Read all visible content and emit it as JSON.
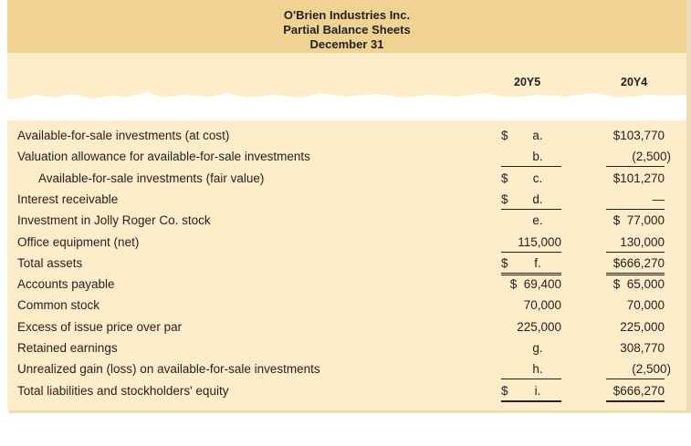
{
  "header": {
    "company": "O'Brien Industries Inc.",
    "title": "Partial Balance Sheets",
    "date": "December 31"
  },
  "columns": [
    "20Y5",
    "20Y4"
  ],
  "rows": [
    {
      "label": "Available-for-sale investments (at cost)",
      "y5_dollar": "$",
      "y5": "a.",
      "y4": "$103,770"
    },
    {
      "label": "Valuation allowance for available-for-sale investments",
      "y5_dollar": "",
      "y5": "b.",
      "y4": "(2,500)"
    },
    {
      "label": "Available-for-sale investments (fair value)",
      "y5_dollar": "$",
      "y5": "c.",
      "y4": "$101,270"
    },
    {
      "label": "Interest receivable",
      "y5_dollar": "$",
      "y5": "d.",
      "y4": "—"
    },
    {
      "label": "Investment in Jolly Roger Co. stock",
      "y5_dollar": "",
      "y5": "e.",
      "y4": "$  77,000"
    },
    {
      "label": "Office equipment (net)",
      "y5_dollar": "",
      "y5": "115,000",
      "y4": "130,000"
    },
    {
      "label": "Total assets",
      "y5_dollar": "$",
      "y5": "f.",
      "y4": "$666,270"
    },
    {
      "label": "Accounts payable",
      "y5_dollar": "",
      "y5": "$  69,400",
      "y4": "$  65,000"
    },
    {
      "label": "Common stock",
      "y5_dollar": "",
      "y5": "70,000",
      "y4": "70,000"
    },
    {
      "label": "Excess of issue price over par",
      "y5_dollar": "",
      "y5": "225,000",
      "y4": "225,000"
    },
    {
      "label": "Retained earnings",
      "y5_dollar": "",
      "y5": "g.",
      "y4": "308,770"
    },
    {
      "label": "Unrealized gain (loss) on available-for-sale investments",
      "y5_dollar": "",
      "y5": "h.",
      "y4": "(2,500)"
    },
    {
      "label": "Total liabilities and stockholders' equity",
      "y5_dollar": "$",
      "y5": "i.",
      "y4": "$666,270"
    }
  ]
}
